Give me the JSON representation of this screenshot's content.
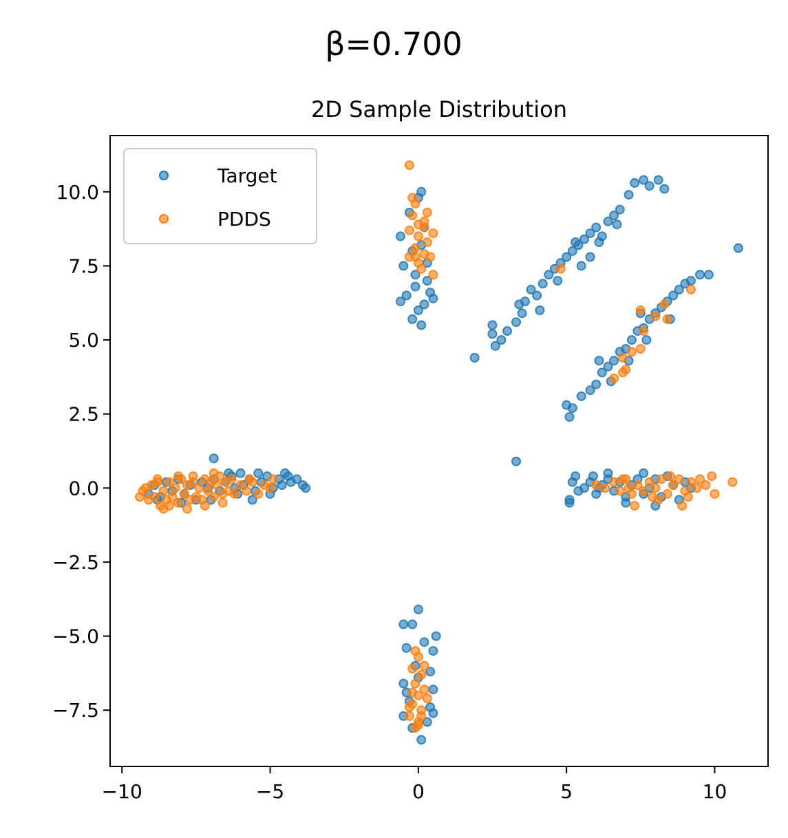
{
  "chart_data": {
    "type": "scatter",
    "suptitle": "β=0.700",
    "title": "2D Sample Distribution",
    "xlabel": "",
    "ylabel": "",
    "xlim": [
      -10.4,
      11.8
    ],
    "ylim": [
      -9.4,
      11.9
    ],
    "xticks": [
      -10,
      -5,
      0,
      5,
      10
    ],
    "xtick_labels": [
      "−10",
      "−5",
      "0",
      "5",
      "10"
    ],
    "yticks": [
      -7.5,
      -5.0,
      -2.5,
      0.0,
      2.5,
      5.0,
      7.5,
      10.0
    ],
    "ytick_labels": [
      "−7.5",
      "−5.0",
      "−2.5",
      "0.0",
      "2.5",
      "5.0",
      "7.5",
      "10.0"
    ],
    "grid": false,
    "legend_position": "top-left",
    "series": [
      {
        "name": "Target",
        "color": "#1f77b4",
        "points": [
          [
            -9.1,
            -0.2
          ],
          [
            -8.9,
            0.1
          ],
          [
            -8.7,
            -0.3
          ],
          [
            -8.5,
            0.2
          ],
          [
            -8.3,
            -0.1
          ],
          [
            -8.1,
            0.3
          ],
          [
            -7.9,
            -0.2
          ],
          [
            -7.7,
            0.1
          ],
          [
            -7.5,
            -0.4
          ],
          [
            -7.3,
            0.2
          ],
          [
            -7.1,
            0.0
          ],
          [
            -6.9,
            0.3
          ],
          [
            -6.7,
            -0.1
          ],
          [
            -6.5,
            0.2
          ],
          [
            -6.3,
            0.4
          ],
          [
            -6.1,
            -0.2
          ],
          [
            -5.9,
            0.1
          ],
          [
            -5.7,
            0.3
          ],
          [
            -5.5,
            -0.1
          ],
          [
            -5.3,
            0.2
          ],
          [
            -5.1,
            0.4
          ],
          [
            -4.9,
            0.0
          ],
          [
            -4.7,
            0.3
          ],
          [
            -4.5,
            0.5
          ],
          [
            -4.3,
            0.2
          ],
          [
            -4.1,
            0.3
          ],
          [
            -3.9,
            0.1
          ],
          [
            -3.8,
            0.0
          ],
          [
            -6.9,
            1.0
          ],
          [
            -6.0,
            0.5
          ],
          [
            -5.6,
            -0.4
          ],
          [
            -5.0,
            -0.2
          ],
          [
            -4.6,
            0.1
          ],
          [
            -6.4,
            0.5
          ],
          [
            -7.0,
            -0.4
          ],
          [
            -8.0,
            -0.5
          ],
          [
            -8.8,
            -0.4
          ],
          [
            -6.2,
            0.0
          ],
          [
            -5.4,
            0.5
          ],
          [
            -4.4,
            0.4
          ],
          [
            8.0,
            0.3
          ],
          [
            5.2,
            0.2
          ],
          [
            5.4,
            -0.1
          ],
          [
            5.6,
            0.0
          ],
          [
            5.8,
            0.2
          ],
          [
            6.0,
            -0.2
          ],
          [
            6.2,
            0.1
          ],
          [
            6.4,
            0.3
          ],
          [
            6.6,
            -0.1
          ],
          [
            6.8,
            0.2
          ],
          [
            7.0,
            -0.3
          ],
          [
            7.2,
            0.1
          ],
          [
            7.4,
            0.3
          ],
          [
            7.6,
            -0.2
          ],
          [
            7.8,
            0.0
          ],
          [
            8.2,
            -0.3
          ],
          [
            8.4,
            0.4
          ],
          [
            8.6,
            0.1
          ],
          [
            8.8,
            -0.4
          ],
          [
            9.0,
            0.2
          ],
          [
            9.2,
            0.0
          ],
          [
            5.1,
            -0.4
          ],
          [
            5.1,
            -0.5
          ],
          [
            6.4,
            0.5
          ],
          [
            7.0,
            -0.5
          ],
          [
            7.6,
            0.5
          ],
          [
            8.0,
            -0.6
          ],
          [
            5.3,
            0.4
          ],
          [
            5.9,
            0.4
          ],
          [
            6.1,
            0.0
          ],
          [
            -0.6,
            8.5
          ],
          [
            -0.5,
            7.5
          ],
          [
            -0.4,
            6.5
          ],
          [
            -0.6,
            6.3
          ],
          [
            -0.3,
            9.3
          ],
          [
            -0.2,
            8.0
          ],
          [
            -0.1,
            7.2
          ],
          [
            0.0,
            6.0
          ],
          [
            0.1,
            5.5
          ],
          [
            -0.2,
            5.7
          ],
          [
            0.0,
            9.8
          ],
          [
            0.1,
            10.0
          ],
          [
            0.2,
            8.8
          ],
          [
            0.3,
            7.6
          ],
          [
            0.4,
            6.6
          ],
          [
            0.5,
            6.4
          ],
          [
            -0.1,
            6.8
          ],
          [
            0.1,
            8.2
          ],
          [
            0.2,
            6.2
          ],
          [
            0.3,
            7.0
          ],
          [
            0.0,
            -4.1
          ],
          [
            -0.2,
            -4.6
          ],
          [
            -0.5,
            -4.6
          ],
          [
            0.6,
            -5.0
          ],
          [
            -0.4,
            -5.4
          ],
          [
            0.5,
            -5.5
          ],
          [
            -0.1,
            -6.0
          ],
          [
            0.4,
            -6.2
          ],
          [
            -0.5,
            -6.6
          ],
          [
            0.5,
            -6.8
          ],
          [
            -0.3,
            -7.2
          ],
          [
            0.4,
            -7.4
          ],
          [
            -0.5,
            -7.7
          ],
          [
            0.3,
            -7.9
          ],
          [
            -0.2,
            -8.1
          ],
          [
            0.1,
            -8.5
          ],
          [
            0.5,
            -7.6
          ],
          [
            -0.4,
            -6.9
          ],
          [
            0.2,
            -5.2
          ],
          [
            0.0,
            -6.4
          ],
          [
            2.5,
            5.5
          ],
          [
            2.5,
            5.2
          ],
          [
            2.6,
            4.8
          ],
          [
            2.8,
            5.0
          ],
          [
            3.0,
            5.3
          ],
          [
            3.3,
            5.6
          ],
          [
            3.5,
            5.9
          ],
          [
            3.6,
            6.3
          ],
          [
            3.8,
            6.7
          ],
          [
            4.0,
            6.5
          ],
          [
            4.2,
            6.9
          ],
          [
            4.4,
            7.2
          ],
          [
            4.6,
            7.4
          ],
          [
            4.8,
            7.6
          ],
          [
            5.0,
            7.8
          ],
          [
            5.2,
            8.0
          ],
          [
            5.4,
            8.2
          ],
          [
            5.6,
            8.4
          ],
          [
            5.8,
            8.6
          ],
          [
            6.0,
            8.8
          ],
          [
            6.2,
            8.5
          ],
          [
            6.4,
            9.0
          ],
          [
            6.6,
            9.2
          ],
          [
            6.8,
            9.4
          ],
          [
            7.1,
            9.9
          ],
          [
            7.3,
            10.3
          ],
          [
            7.6,
            10.4
          ],
          [
            7.8,
            10.2
          ],
          [
            8.1,
            10.4
          ],
          [
            8.3,
            10.1
          ],
          [
            10.8,
            8.1
          ],
          [
            1.9,
            4.4
          ],
          [
            5.8,
            7.8
          ],
          [
            5.3,
            8.3
          ],
          [
            4.7,
            7.0
          ],
          [
            6.1,
            8.3
          ],
          [
            5.5,
            7.5
          ],
          [
            4.1,
            6.0
          ],
          [
            3.4,
            6.2
          ],
          [
            6.7,
            8.9
          ],
          [
            5.1,
            2.4
          ],
          [
            5.0,
            2.8
          ],
          [
            5.2,
            2.7
          ],
          [
            5.5,
            3.1
          ],
          [
            5.8,
            3.3
          ],
          [
            6.0,
            3.5
          ],
          [
            6.2,
            3.9
          ],
          [
            6.4,
            4.1
          ],
          [
            6.6,
            4.3
          ],
          [
            6.8,
            4.6
          ],
          [
            7.0,
            4.7
          ],
          [
            7.2,
            5.0
          ],
          [
            7.4,
            5.3
          ],
          [
            7.6,
            5.4
          ],
          [
            7.8,
            5.7
          ],
          [
            8.0,
            5.9
          ],
          [
            8.2,
            6.1
          ],
          [
            8.4,
            6.3
          ],
          [
            8.6,
            6.5
          ],
          [
            8.8,
            6.7
          ],
          [
            9.0,
            6.9
          ],
          [
            9.2,
            7.0
          ],
          [
            9.5,
            7.2
          ],
          [
            9.8,
            7.2
          ],
          [
            6.5,
            3.6
          ],
          [
            7.1,
            4.3
          ],
          [
            7.7,
            5.0
          ],
          [
            8.5,
            5.7
          ],
          [
            6.1,
            4.3
          ],
          [
            7.5,
            5.9
          ],
          [
            3.3,
            0.9
          ]
        ]
      },
      {
        "name": "PDDS",
        "color": "#ff7f0e",
        "points": [
          [
            -9.3,
            -0.1
          ],
          [
            -9.1,
            -0.4
          ],
          [
            -9.0,
            0.1
          ],
          [
            -8.9,
            -0.3
          ],
          [
            -8.8,
            0.2
          ],
          [
            -8.7,
            -0.6
          ],
          [
            -8.6,
            -0.1
          ],
          [
            -8.5,
            -0.4
          ],
          [
            -8.4,
            0.2
          ],
          [
            -8.3,
            -0.3
          ],
          [
            -8.2,
            0.0
          ],
          [
            -8.1,
            -0.5
          ],
          [
            -8.0,
            0.3
          ],
          [
            -7.9,
            -0.2
          ],
          [
            -7.8,
            0.1
          ],
          [
            -7.7,
            -0.4
          ],
          [
            -7.6,
            0.2
          ],
          [
            -7.5,
            -0.3
          ],
          [
            -7.4,
            0.0
          ],
          [
            -7.3,
            -0.4
          ],
          [
            -7.2,
            0.3
          ],
          [
            -7.1,
            -0.1
          ],
          [
            -7.0,
            0.2
          ],
          [
            -6.9,
            -0.3
          ],
          [
            -6.8,
            0.1
          ],
          [
            -6.7,
            0.4
          ],
          [
            -6.6,
            -0.2
          ],
          [
            -6.5,
            0.2
          ],
          [
            -6.4,
            -0.1
          ],
          [
            -6.3,
            0.3
          ],
          [
            -6.2,
            -0.2
          ],
          [
            -6.0,
            0.1
          ],
          [
            -5.8,
            -0.1
          ],
          [
            -5.6,
            0.2
          ],
          [
            -5.4,
            -0.2
          ],
          [
            -5.2,
            0.1
          ],
          [
            -5.0,
            0.0
          ],
          [
            -4.9,
            0.3
          ],
          [
            -8.6,
            -0.7
          ],
          [
            -7.8,
            -0.7
          ],
          [
            -8.8,
            0.3
          ],
          [
            -7.2,
            -0.6
          ],
          [
            -9.4,
            -0.3
          ],
          [
            -6.9,
            0.5
          ],
          [
            -8.1,
            0.4
          ],
          [
            -5.7,
            0.3
          ],
          [
            -9.2,
            0.0
          ],
          [
            -7.6,
            0.4
          ],
          [
            -6.6,
            -0.5
          ],
          [
            -8.4,
            -0.6
          ],
          [
            6.3,
            0.0
          ],
          [
            6.6,
            0.2
          ],
          [
            6.8,
            -0.1
          ],
          [
            7.0,
            0.3
          ],
          [
            7.2,
            -0.2
          ],
          [
            7.4,
            0.1
          ],
          [
            7.6,
            -0.1
          ],
          [
            7.8,
            0.2
          ],
          [
            8.0,
            0.0
          ],
          [
            8.2,
            0.3
          ],
          [
            8.4,
            -0.2
          ],
          [
            8.6,
            0.1
          ],
          [
            8.8,
            0.3
          ],
          [
            9.0,
            -0.1
          ],
          [
            9.2,
            0.2
          ],
          [
            9.4,
            0.0
          ],
          [
            9.7,
            0.1
          ],
          [
            10.0,
            -0.2
          ],
          [
            9.9,
            0.4
          ],
          [
            10.6,
            0.2
          ],
          [
            6.0,
            0.1
          ],
          [
            7.3,
            -0.6
          ],
          [
            8.9,
            -0.6
          ],
          [
            9.5,
            0.3
          ],
          [
            6.9,
            0.3
          ],
          [
            7.9,
            -0.3
          ],
          [
            8.5,
            0.4
          ],
          [
            9.1,
            -0.3
          ],
          [
            7.1,
            0.0
          ],
          [
            8.1,
            -0.4
          ],
          [
            -0.3,
            10.9
          ],
          [
            -0.2,
            9.8
          ],
          [
            -0.1,
            9.6
          ],
          [
            0.3,
            9.3
          ],
          [
            0.2,
            9.0
          ],
          [
            -0.3,
            8.7
          ],
          [
            0.0,
            8.5
          ],
          [
            0.5,
            8.6
          ],
          [
            0.3,
            8.3
          ],
          [
            -0.1,
            8.1
          ],
          [
            0.2,
            7.9
          ],
          [
            -0.3,
            7.8
          ],
          [
            0.0,
            7.6
          ],
          [
            0.4,
            7.8
          ],
          [
            0.5,
            7.2
          ],
          [
            0.1,
            7.4
          ],
          [
            -0.2,
            9.2
          ],
          [
            0.2,
            8.8
          ],
          [
            0.0,
            8.9
          ],
          [
            -0.1,
            7.8
          ],
          [
            -0.1,
            -5.5
          ],
          [
            0.0,
            -5.7
          ],
          [
            -0.2,
            -6.1
          ],
          [
            0.1,
            -6.3
          ],
          [
            -0.1,
            -6.6
          ],
          [
            0.2,
            -6.8
          ],
          [
            0.0,
            -7.0
          ],
          [
            0.3,
            -7.1
          ],
          [
            -0.2,
            -7.3
          ],
          [
            0.1,
            -7.5
          ],
          [
            -0.3,
            -7.7
          ],
          [
            0.0,
            -7.9
          ],
          [
            -0.1,
            -8.1
          ],
          [
            -0.2,
            -6.9
          ],
          [
            0.2,
            -6.0
          ],
          [
            0.1,
            -7.7
          ],
          [
            -0.3,
            -7.4
          ],
          [
            0.0,
            -8.0
          ],
          [
            4.8,
            7.4
          ],
          [
            7.5,
            6.0
          ],
          [
            8.3,
            6.2
          ],
          [
            8.4,
            5.7
          ],
          [
            8.0,
            5.8
          ],
          [
            6.9,
            4.4
          ],
          [
            7.2,
            4.6
          ],
          [
            7.5,
            4.7
          ],
          [
            7.0,
            4.0
          ],
          [
            6.9,
            3.9
          ],
          [
            6.6,
            3.7
          ],
          [
            7.6,
            5.3
          ],
          [
            9.2,
            6.7
          ]
        ]
      }
    ]
  }
}
